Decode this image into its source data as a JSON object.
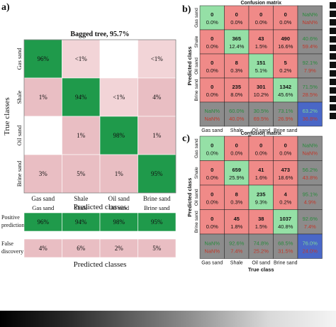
{
  "colors": {
    "green_dark": "#1f9a4b",
    "pink": "#e9bec3",
    "pink_light": "#f2d4d7",
    "white": "#ffffff",
    "cm_red": "#f08a88",
    "cm_green": "#7fd99a",
    "cm_green_cell": "#95e0a6",
    "cm_gray": "#8c8c8c",
    "cm_blue": "#4a67c7",
    "nan_green": "#2b8a3e",
    "pct_red": "#c0392b"
  },
  "chart_data": [
    {
      "type": "heatmap",
      "panel_label": "a)",
      "title": "Bagged tree, 95.7%",
      "xlabel": "Predicted classes",
      "ylabel": "True classes",
      "x_categories": [
        "Gas sand",
        "Shale",
        "Oil sand",
        "Brine sand"
      ],
      "y_categories": [
        "Gas sand",
        "Shale",
        "Oil sand",
        "Brine sand"
      ],
      "cells": [
        [
          "96%",
          "<1%",
          "",
          "<1%"
        ],
        [
          "1%",
          "94%",
          "<1%",
          "4%"
        ],
        [
          "",
          "1%",
          "98%",
          "1%"
        ],
        [
          "3%",
          "5%",
          "1%",
          "95%"
        ]
      ],
      "summary_rows": [
        {
          "label": [
            "Positive",
            "prediction"
          ],
          "values": [
            "96%",
            "94%",
            "98%",
            "95%"
          ]
        },
        {
          "label": [
            "False",
            "discovery"
          ],
          "values": [
            "4%",
            "6%",
            "2%",
            "5%"
          ]
        }
      ],
      "summary_xlabel": "Predicted classes"
    },
    {
      "type": "heatmap",
      "panel_label": "b)",
      "title": "Confusion matrix",
      "xlabel": "True class",
      "ylabel": "Predicted class",
      "x_categories": [
        "Gas sand",
        "Shale",
        "Oil sand",
        "Brine sand"
      ],
      "y_categories": [
        "Gas sand",
        "Shale",
        "Oil sand",
        "Brine sand"
      ],
      "cells": [
        [
          {
            "count": "0",
            "pct": "0.0%"
          },
          {
            "count": "0",
            "pct": "0.0%"
          },
          {
            "count": "0",
            "pct": "0.0%"
          },
          {
            "count": "0",
            "pct": "0.0%"
          }
        ],
        [
          {
            "count": "0",
            "pct": "0.0%"
          },
          {
            "count": "365",
            "pct": "12.4%"
          },
          {
            "count": "43",
            "pct": "1.5%"
          },
          {
            "count": "490",
            "pct": "16.6%"
          }
        ],
        [
          {
            "count": "0",
            "pct": "0.0%"
          },
          {
            "count": "8",
            "pct": "0.3%"
          },
          {
            "count": "151",
            "pct": "5.1%"
          },
          {
            "count": "5",
            "pct": "0.2%"
          }
        ],
        [
          {
            "count": "0",
            "pct": "0.0%"
          },
          {
            "count": "235",
            "pct": "8.0%"
          },
          {
            "count": "301",
            "pct": "10.2%"
          },
          {
            "count": "1342",
            "pct": "45.6%"
          }
        ]
      ],
      "row_totals": [
        [
          "NaN%",
          "NaN%"
        ],
        [
          "40.6%",
          "59.4%"
        ],
        [
          "92.1%",
          "7.9%"
        ],
        [
          "71.5%",
          "28.5%"
        ]
      ],
      "col_totals": [
        [
          "NaN%",
          "NaN%"
        ],
        [
          "60.0%",
          "40.0%"
        ],
        [
          "30.5%",
          "69.5%"
        ],
        [
          "73.1%",
          "26.9%"
        ]
      ],
      "overall": [
        "63.2%",
        "36.8%"
      ]
    },
    {
      "type": "heatmap",
      "panel_label": "c)",
      "title": "Confusion matrix",
      "xlabel": "True class",
      "ylabel": "Predicted class",
      "x_categories": [
        "Gas sand",
        "Shale",
        "Oil sand",
        "Brine sand"
      ],
      "y_categories": [
        "Gas sand",
        "Shale",
        "Oil sand",
        "Brine sand"
      ],
      "cells": [
        [
          {
            "count": "0",
            "pct": "0.0%"
          },
          {
            "count": "0",
            "pct": "0.0%"
          },
          {
            "count": "0",
            "pct": "0.0%"
          },
          {
            "count": "0",
            "pct": "0.0%"
          }
        ],
        [
          {
            "count": "0",
            "pct": "0.0%"
          },
          {
            "count": "659",
            "pct": "25.9%"
          },
          {
            "count": "41",
            "pct": "1.6%"
          },
          {
            "count": "473",
            "pct": "18.6%"
          }
        ],
        [
          {
            "count": "0",
            "pct": "0.0%"
          },
          {
            "count": "8",
            "pct": "0.3%"
          },
          {
            "count": "235",
            "pct": "9.3%"
          },
          {
            "count": "4",
            "pct": "0.2%"
          }
        ],
        [
          {
            "count": "0",
            "pct": "0.0%"
          },
          {
            "count": "45",
            "pct": "1.8%"
          },
          {
            "count": "38",
            "pct": "1.5%"
          },
          {
            "count": "1037",
            "pct": "40.8%"
          }
        ]
      ],
      "row_totals": [
        [
          "NaN%",
          "NaN%"
        ],
        [
          "56.2%",
          "43.8%"
        ],
        [
          "95.1%",
          "4.9%"
        ],
        [
          "92.6%",
          "7.4%"
        ]
      ],
      "col_totals": [
        [
          "NaN%",
          "NaN%"
        ],
        [
          "92.6%",
          "7.4%"
        ],
        [
          "74.8%",
          "25.2%"
        ],
        [
          "68.5%",
          "31.5%"
        ]
      ],
      "overall": [
        "76.0%",
        "24.0%"
      ]
    }
  ]
}
